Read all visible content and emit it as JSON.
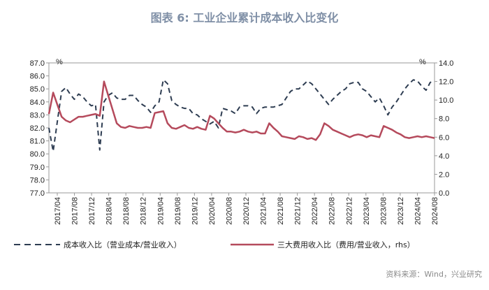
{
  "title": "图表 6:  工业企业累计成本收入比变化",
  "source": "资料来源：Wind，兴业研究",
  "chart_data": {
    "type": "line",
    "left_unit": "%",
    "right_unit": "%",
    "ylim_left": [
      77.0,
      87.0
    ],
    "ylim_right": [
      0.0,
      14.0
    ],
    "yticks_left": [
      "87.0",
      "86.0",
      "85.0",
      "84.0",
      "83.0",
      "82.0",
      "81.0",
      "80.0",
      "79.0",
      "78.0",
      "77.0"
    ],
    "yticks_right": [
      "14.0",
      "12.0",
      "10.0",
      "8.0",
      "6.0",
      "4.0",
      "2.0",
      "0.0"
    ],
    "x_tick_labels": [
      "2017/04",
      "2017/08",
      "2017/12",
      "2018/04",
      "2018/08",
      "2018/12",
      "2019/04",
      "2019/08",
      "2019/12",
      "2020/04",
      "2020/08",
      "2020/12",
      "2021/04",
      "2021/08",
      "2021/12",
      "2022/04",
      "2022/08",
      "2022/12",
      "2023/04",
      "2023/08",
      "2023/12",
      "2024/04",
      "2024/08"
    ],
    "series": [
      {
        "name": "成本收入比（营业成本/营业收入）",
        "axis": "left",
        "color": "#2e3d52",
        "style": "dashed",
        "values": [
          82.0,
          80.2,
          82.5,
          84.8,
          85.1,
          84.6,
          84.2,
          84.6,
          84.4,
          84.0,
          83.7,
          83.8,
          80.3,
          84.0,
          84.5,
          84.7,
          84.3,
          84.2,
          84.2,
          84.5,
          84.5,
          84.1,
          83.8,
          83.6,
          83.2,
          83.7,
          84.0,
          85.7,
          85.4,
          84.1,
          83.8,
          83.6,
          83.5,
          83.5,
          83.1,
          83.0,
          82.7,
          82.5,
          82.3,
          82.5,
          82.0,
          83.5,
          83.4,
          83.3,
          83.1,
          83.6,
          83.7,
          83.7,
          83.6,
          83.1,
          83.5,
          83.6,
          83.6,
          83.6,
          83.7,
          83.8,
          84.3,
          84.8,
          85.0,
          85.0,
          85.3,
          85.6,
          85.4,
          85.0,
          84.6,
          84.2,
          83.8,
          84.2,
          84.5,
          84.8,
          85.0,
          85.4,
          85.5,
          85.5,
          85.0,
          84.8,
          84.4,
          84.0,
          84.3,
          83.7,
          83.0,
          83.6,
          84.0,
          84.5,
          85.0,
          85.4,
          85.7,
          85.6,
          85.2,
          84.9,
          85.5,
          85.6
        ]
      },
      {
        "name": "三大费用收入比（费用/营业收入，rhs）",
        "axis": "right",
        "color": "#b54a5c",
        "style": "solid",
        "values": [
          8.5,
          10.8,
          9.5,
          8.2,
          7.8,
          7.6,
          7.9,
          8.2,
          8.2,
          8.3,
          8.4,
          8.5,
          8.3,
          12.0,
          10.5,
          9.0,
          7.5,
          7.1,
          7.0,
          7.2,
          7.1,
          7.0,
          7.0,
          7.1,
          7.0,
          8.6,
          8.7,
          8.8,
          7.5,
          7.0,
          6.9,
          7.1,
          7.3,
          7.0,
          6.9,
          7.1,
          6.9,
          6.8,
          8.3,
          8.0,
          7.5,
          7.0,
          6.6,
          6.6,
          6.5,
          6.6,
          6.8,
          6.6,
          6.5,
          6.6,
          6.4,
          6.4,
          7.5,
          7.0,
          6.6,
          6.1,
          6.0,
          5.9,
          5.8,
          6.1,
          6.0,
          5.8,
          5.9,
          5.7,
          6.3,
          7.5,
          7.2,
          6.8,
          6.6,
          6.4,
          6.2,
          6.0,
          6.2,
          6.3,
          6.2,
          6.0,
          6.2,
          6.1,
          6.0,
          7.2,
          7.0,
          6.8,
          6.5,
          6.3,
          6.0,
          5.9,
          6.0,
          6.1,
          6.0,
          6.1,
          6.0,
          5.9
        ]
      }
    ]
  }
}
